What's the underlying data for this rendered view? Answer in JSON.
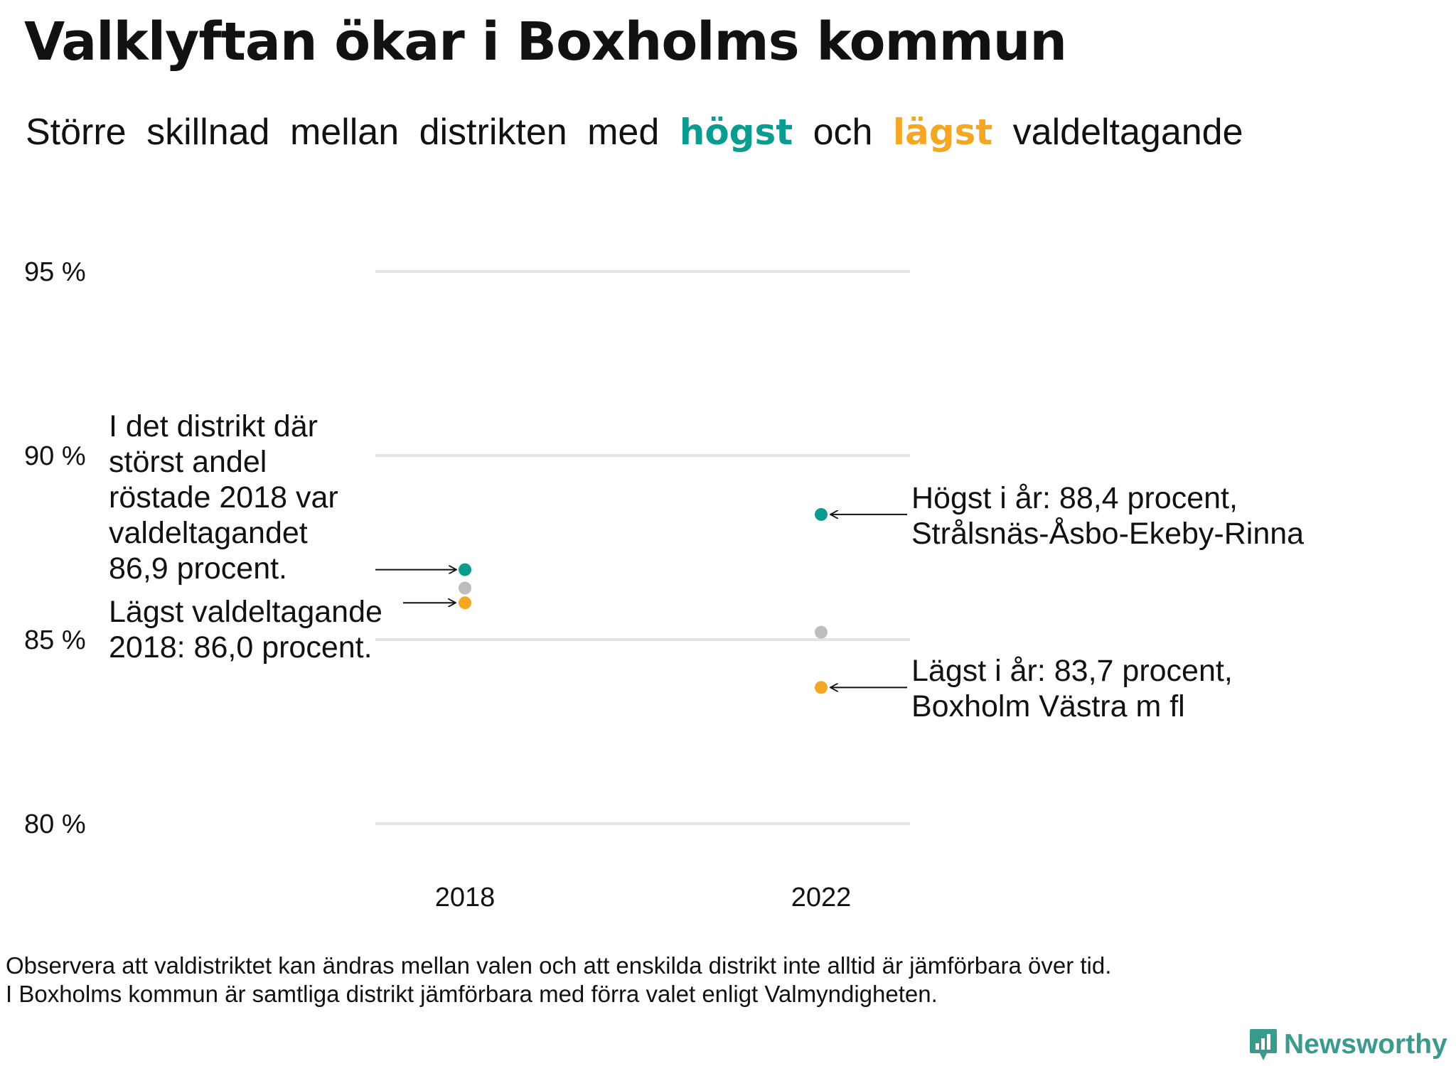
{
  "header": {
    "title": "Valklyftan ökar i Boxholms kommun",
    "subtitle_words": [
      "Större",
      "skillnad",
      "mellan",
      "distrikten",
      "med"
    ],
    "subtitle_high": "högst",
    "subtitle_and": "och",
    "subtitle_low": "lägst",
    "subtitle_end": "valdeltagande"
  },
  "colors": {
    "high": "#0a9c8f",
    "low": "#f5a623",
    "other": "#bdbdbd",
    "grid": "#e4e4e4"
  },
  "chart_data": {
    "type": "scatter",
    "categories": [
      "2018",
      "2022"
    ],
    "y_ticks": [
      {
        "value": 95,
        "label": "95 %"
      },
      {
        "value": 90,
        "label": "90 %"
      },
      {
        "value": 85,
        "label": "85 %"
      },
      {
        "value": 80,
        "label": "80 %"
      }
    ],
    "ylim": [
      80,
      95
    ],
    "grid": true,
    "points": [
      {
        "category": "2018",
        "value": 86.9,
        "group": "high"
      },
      {
        "category": "2018",
        "value": 86.4,
        "group": "other"
      },
      {
        "category": "2018",
        "value": 86.0,
        "group": "low"
      },
      {
        "category": "2022",
        "value": 88.4,
        "group": "high"
      },
      {
        "category": "2022",
        "value": 85.2,
        "group": "other"
      },
      {
        "category": "2022",
        "value": 83.7,
        "group": "low"
      }
    ],
    "annotations": {
      "high_2018": [
        "I det distrikt där",
        "störst andel",
        "röstade 2018 var",
        "valdeltagandet",
        "86,9 procent."
      ],
      "low_2018": [
        "Lägst valdeltagande",
        "2018: 86,0 procent."
      ],
      "high_2022": [
        "Högst i år: 88,4 procent,",
        "Strålsnäs-Åsbo-Ekeby-Rinna"
      ],
      "low_2022": [
        "Lägst i år: 83,7 procent,",
        "Boxholm Västra m fl"
      ]
    }
  },
  "footnote": {
    "line1": "Observera att valdistriktet kan ändras mellan valen och att enskilda distrikt inte alltid är jämförbara över tid.",
    "line2": "I Boxholms kommun är samtliga distrikt jämförbara med förra valet enligt Valmyndigheten."
  },
  "brand": {
    "name": "Newsworthy",
    "icon": "bar-chart-icon"
  }
}
